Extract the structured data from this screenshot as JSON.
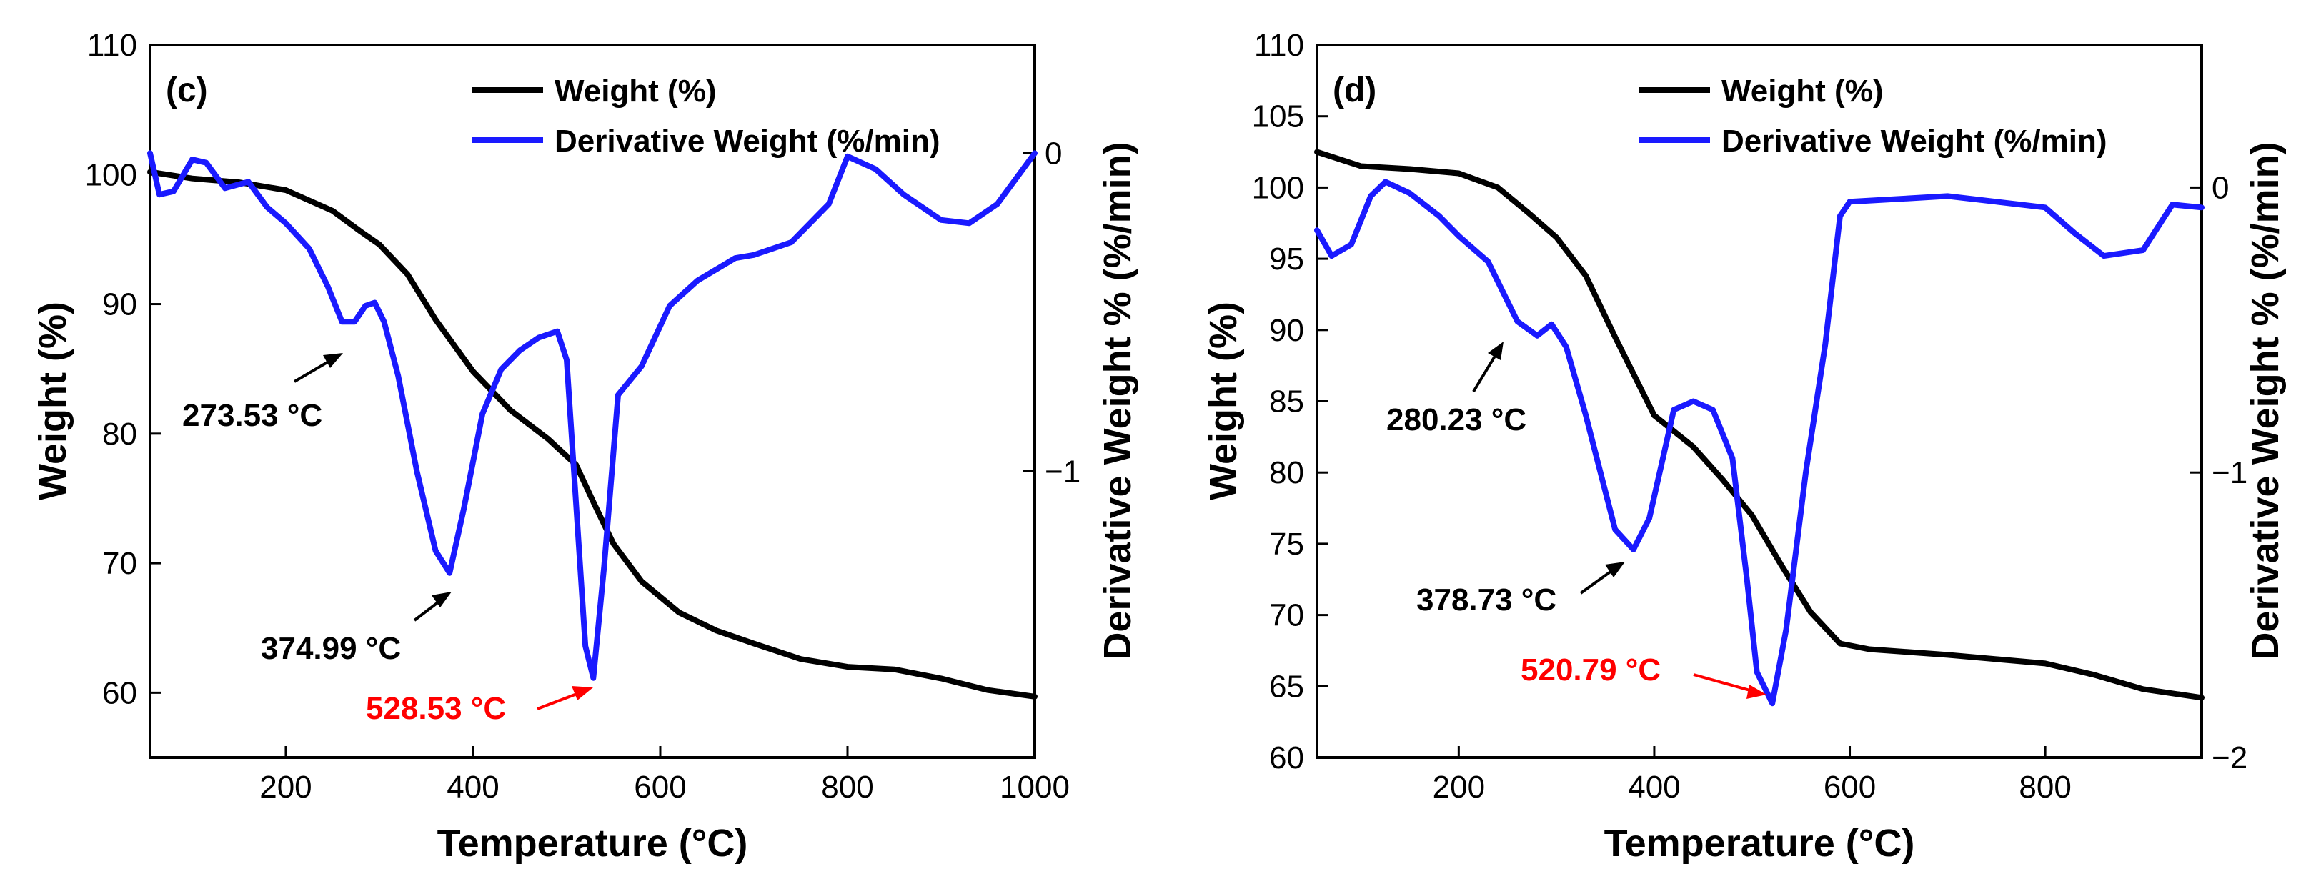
{
  "chart_data": [
    {
      "type": "line",
      "panel_label": "(c)",
      "xlabel": "Temperature (°C)",
      "ylabel": "Weight (%)",
      "y2label": "Derivative Weight % (%/min)",
      "xlim": [
        55,
        1000
      ],
      "ylim": [
        55,
        110
      ],
      "y2lim": [
        -1.9,
        0.34
      ],
      "x_ticks": [
        200,
        400,
        600,
        800,
        1000
      ],
      "y_ticks": [
        60,
        70,
        80,
        90,
        100,
        110
      ],
      "y2_ticks": [
        0,
        -1
      ],
      "legend": {
        "position": "top-right"
      },
      "series": [
        {
          "name": "Weight (%)",
          "axis": "left",
          "color": "#000000",
          "x": [
            55,
            100,
            150,
            200,
            250,
            280,
            300,
            330,
            360,
            400,
            440,
            480,
            510,
            530,
            550,
            580,
            620,
            660,
            700,
            750,
            800,
            850,
            900,
            950,
            1000
          ],
          "y": [
            100.2,
            99.7,
            99.4,
            98.8,
            97.2,
            95.6,
            94.6,
            92.3,
            88.8,
            84.8,
            81.8,
            79.6,
            77.6,
            74.5,
            71.5,
            68.6,
            66.2,
            64.8,
            63.8,
            62.6,
            62.0,
            61.8,
            61.1,
            60.2,
            59.7
          ]
        },
        {
          "name": "Derivative Weight (%/min)",
          "axis": "right",
          "color": "#1a1aff",
          "x": [
            55,
            65,
            80,
            100,
            115,
            135,
            160,
            180,
            200,
            225,
            245,
            260,
            273.5,
            285,
            295,
            305,
            320,
            340,
            360,
            374.99,
            390,
            410,
            430,
            450,
            470,
            490,
            500,
            510,
            520,
            528.53,
            540,
            555,
            580,
            610,
            640,
            680,
            700,
            740,
            780,
            800,
            830,
            860,
            900,
            930,
            960,
            990,
            1000
          ],
          "y": [
            0.0,
            -0.13,
            -0.12,
            -0.02,
            -0.03,
            -0.11,
            -0.09,
            -0.17,
            -0.22,
            -0.3,
            -0.42,
            -0.53,
            -0.53,
            -0.48,
            -0.47,
            -0.53,
            -0.7,
            -1.0,
            -1.25,
            -1.32,
            -1.12,
            -0.82,
            -0.68,
            -0.62,
            -0.58,
            -0.56,
            -0.65,
            -1.1,
            -1.55,
            -1.65,
            -1.3,
            -0.76,
            -0.67,
            -0.48,
            -0.4,
            -0.33,
            -0.32,
            -0.28,
            -0.16,
            -0.01,
            -0.05,
            -0.13,
            -0.21,
            -0.22,
            -0.16,
            -0.04,
            0.0
          ]
        }
      ],
      "annotations": [
        {
          "text": "273.53 °C",
          "color": "#000000",
          "x": 273.53
        },
        {
          "text": "374.99 °C",
          "color": "#000000",
          "x": 374.99
        },
        {
          "text": "528.53 °C",
          "color": "#ff0000",
          "x": 528.53
        }
      ]
    },
    {
      "type": "line",
      "panel_label": "(d)",
      "xlabel": "Temperature (°C)",
      "ylabel": "Weight (%)",
      "y2label": "Derivative Weight % (%/min)",
      "xlim": [
        55,
        960
      ],
      "ylim": [
        60,
        110
      ],
      "y2lim": [
        -2.0,
        0.5
      ],
      "x_ticks": [
        200,
        400,
        600,
        800
      ],
      "y_ticks": [
        60,
        65,
        70,
        75,
        80,
        85,
        90,
        95,
        100,
        105,
        110
      ],
      "y2_ticks": [
        0,
        -1,
        -2
      ],
      "legend": {
        "position": "top-right"
      },
      "series": [
        {
          "name": "Weight (%)",
          "axis": "left",
          "color": "#000000",
          "x": [
            55,
            100,
            150,
            200,
            240,
            270,
            300,
            330,
            360,
            400,
            440,
            470,
            500,
            530,
            560,
            590,
            620,
            700,
            800,
            850,
            900,
            960
          ],
          "y": [
            102.5,
            101.5,
            101.3,
            101.0,
            100.0,
            98.3,
            96.5,
            93.8,
            89.5,
            84.0,
            81.8,
            79.5,
            77.0,
            73.5,
            70.2,
            68.0,
            67.6,
            67.2,
            66.6,
            65.8,
            64.8,
            64.2
          ],
          "_note": "weight curve"
        },
        {
          "name": "Derivative Weight (%/min)",
          "axis": "right",
          "color": "#1a1aff",
          "x": [
            55,
            70,
            90,
            110,
            125,
            150,
            180,
            200,
            230,
            260,
            280.23,
            295,
            310,
            330,
            360,
            378.73,
            395,
            420,
            440,
            460,
            480,
            495,
            505,
            520.79,
            535,
            555,
            575,
            590,
            600,
            650,
            700,
            750,
            800,
            830,
            860,
            900,
            930,
            960
          ],
          "y": [
            -0.15,
            -0.24,
            -0.2,
            -0.03,
            0.02,
            -0.02,
            -0.1,
            -0.17,
            -0.26,
            -0.47,
            -0.52,
            -0.48,
            -0.56,
            -0.8,
            -1.2,
            -1.27,
            -1.16,
            -0.78,
            -0.75,
            -0.78,
            -0.95,
            -1.38,
            -1.7,
            -1.81,
            -1.55,
            -1.0,
            -0.55,
            -0.1,
            -0.05,
            -0.04,
            -0.03,
            -0.05,
            -0.07,
            -0.16,
            -0.24,
            -0.22,
            -0.06,
            -0.07
          ]
        }
      ],
      "annotations": [
        {
          "text": "280.23 °C",
          "color": "#000000",
          "x": 280.23
        },
        {
          "text": "378.73 °C",
          "color": "#000000",
          "x": 378.73
        },
        {
          "text": "520.79 °C",
          "color": "#ff0000",
          "x": 520.79
        }
      ]
    }
  ]
}
